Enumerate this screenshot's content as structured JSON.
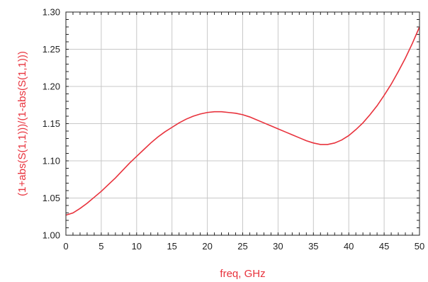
{
  "chart_data": {
    "type": "line",
    "xlabel": "freq, GHz",
    "ylabel": "(1+abs(S(1,1)))/(1-abs(S(1,1)))",
    "xlim": [
      0,
      50
    ],
    "ylim": [
      1.0,
      1.3
    ],
    "x_ticks": [
      "0",
      "5",
      "10",
      "15",
      "20",
      "25",
      "30",
      "35",
      "40",
      "45",
      "50"
    ],
    "y_ticks": [
      "1.00",
      "1.05",
      "1.10",
      "1.15",
      "1.20",
      "1.25",
      "1.30"
    ],
    "grid": true,
    "series": [
      {
        "color": "#e8323c",
        "x": [
          0,
          1,
          2,
          3,
          4,
          5,
          6,
          7,
          8,
          9,
          10,
          11,
          12,
          13,
          14,
          15,
          16,
          17,
          18,
          19,
          20,
          21,
          22,
          23,
          24,
          25,
          26,
          27,
          28,
          29,
          30,
          31,
          32,
          33,
          34,
          35,
          36,
          37,
          38,
          39,
          40,
          41,
          42,
          43,
          44,
          45,
          46,
          47,
          48,
          49,
          50
        ],
        "y": [
          1.027,
          1.03,
          1.036,
          1.043,
          1.051,
          1.059,
          1.068,
          1.077,
          1.087,
          1.097,
          1.106,
          1.115,
          1.124,
          1.132,
          1.139,
          1.145,
          1.151,
          1.156,
          1.16,
          1.163,
          1.165,
          1.166,
          1.166,
          1.165,
          1.164,
          1.162,
          1.159,
          1.155,
          1.151,
          1.147,
          1.143,
          1.139,
          1.135,
          1.131,
          1.127,
          1.124,
          1.122,
          1.122,
          1.124,
          1.128,
          1.134,
          1.142,
          1.151,
          1.162,
          1.174,
          1.188,
          1.203,
          1.22,
          1.238,
          1.258,
          1.28
        ]
      }
    ],
    "colors": {
      "axis_text": "#e8323c",
      "grid": "#c8c8c8",
      "frame": "#222222"
    }
  }
}
